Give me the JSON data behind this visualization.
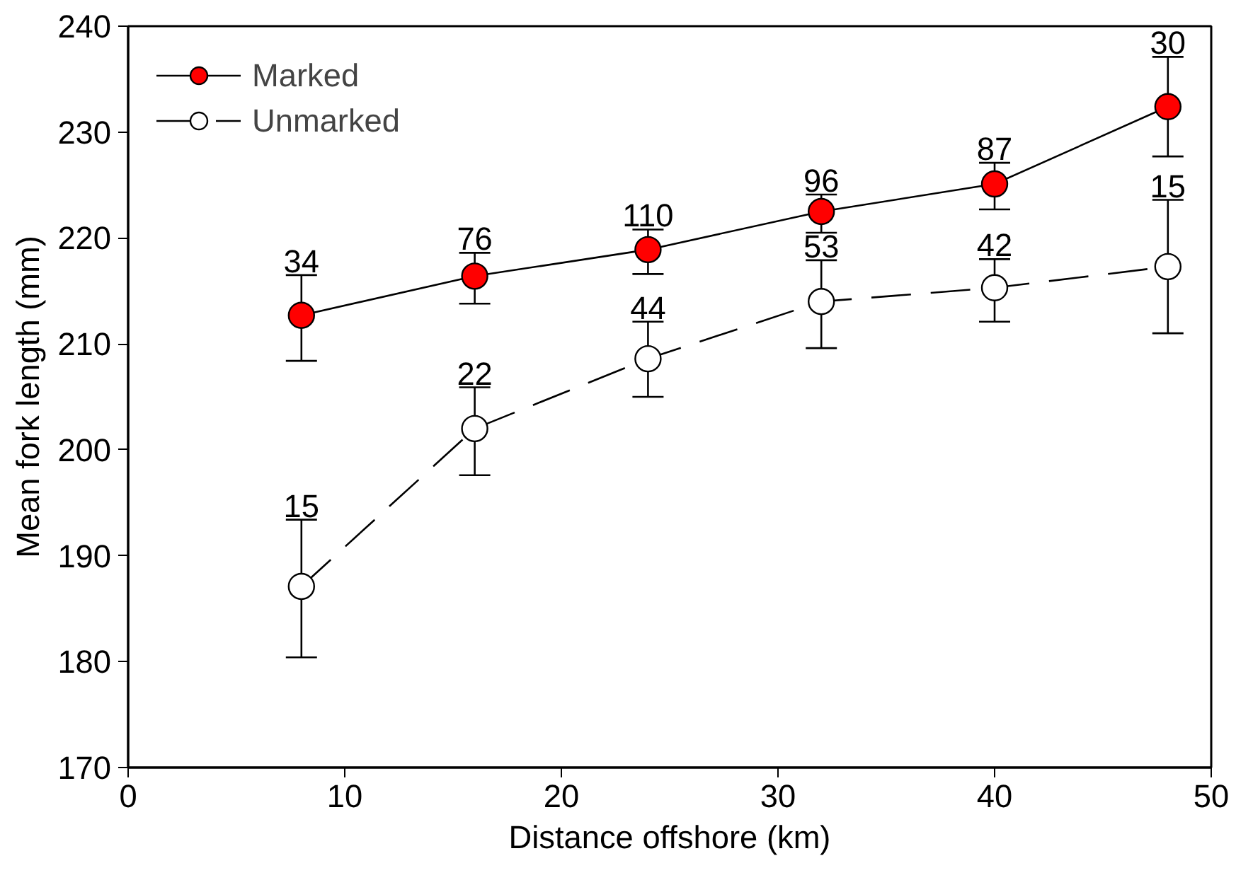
{
  "chart_data": {
    "type": "line",
    "xlabel": "Distance offshore (km)",
    "ylabel": "Mean fork length (mm)",
    "x": [
      8,
      16,
      24,
      32,
      40,
      48
    ],
    "xlim": [
      0,
      50
    ],
    "xticks": [
      0,
      10,
      20,
      30,
      40,
      50
    ],
    "ylim": [
      170,
      240
    ],
    "yticks": [
      170,
      180,
      190,
      200,
      210,
      220,
      230,
      240
    ],
    "grid": false,
    "legend": "top left",
    "marker": "circle",
    "series": [
      {
        "name": "Marked",
        "color": "#ff0000",
        "line_style": "solid",
        "values": [
          212.7,
          216.4,
          218.9,
          222.5,
          225.1,
          232.4
        ],
        "errors": [
          [
            208.4,
            216.5
          ],
          [
            213.8,
            218.6
          ],
          [
            216.6,
            220.8
          ],
          [
            220.5,
            224.1
          ],
          [
            222.7,
            227.1
          ],
          [
            227.7,
            237.1
          ]
        ]
      },
      {
        "name": "Unmarked",
        "color": "#ffffff",
        "line_style": "dashed",
        "values": [
          187.1,
          202.0,
          208.6,
          214.0,
          215.3,
          217.3
        ],
        "errors": [
          [
            180.4,
            193.4
          ],
          [
            197.6,
            205.9
          ],
          [
            205.0,
            212.1
          ],
          [
            209.6,
            217.9
          ],
          [
            212.1,
            218.0
          ],
          [
            211.0,
            223.6
          ]
        ]
      }
    ],
    "annotations": [
      {
        "text": "34",
        "x": 8,
        "y": 216.5
      },
      {
        "text": "76",
        "x": 16,
        "y": 218.6
      },
      {
        "text": "110",
        "x": 24,
        "y": 220.8
      },
      {
        "text": "96",
        "x": 32,
        "y": 224.1
      },
      {
        "text": "87",
        "x": 40,
        "y": 227.1
      },
      {
        "text": "30",
        "x": 48,
        "y": 237.1
      },
      {
        "text": "15",
        "x": 8,
        "y": 193.4
      },
      {
        "text": "22",
        "x": 16,
        "y": 205.9
      },
      {
        "text": "44",
        "x": 24,
        "y": 212.1
      },
      {
        "text": "53",
        "x": 32,
        "y": 217.9
      },
      {
        "text": "42",
        "x": 40,
        "y": 218.0
      },
      {
        "text": "15",
        "x": 48,
        "y": 223.6
      }
    ]
  }
}
